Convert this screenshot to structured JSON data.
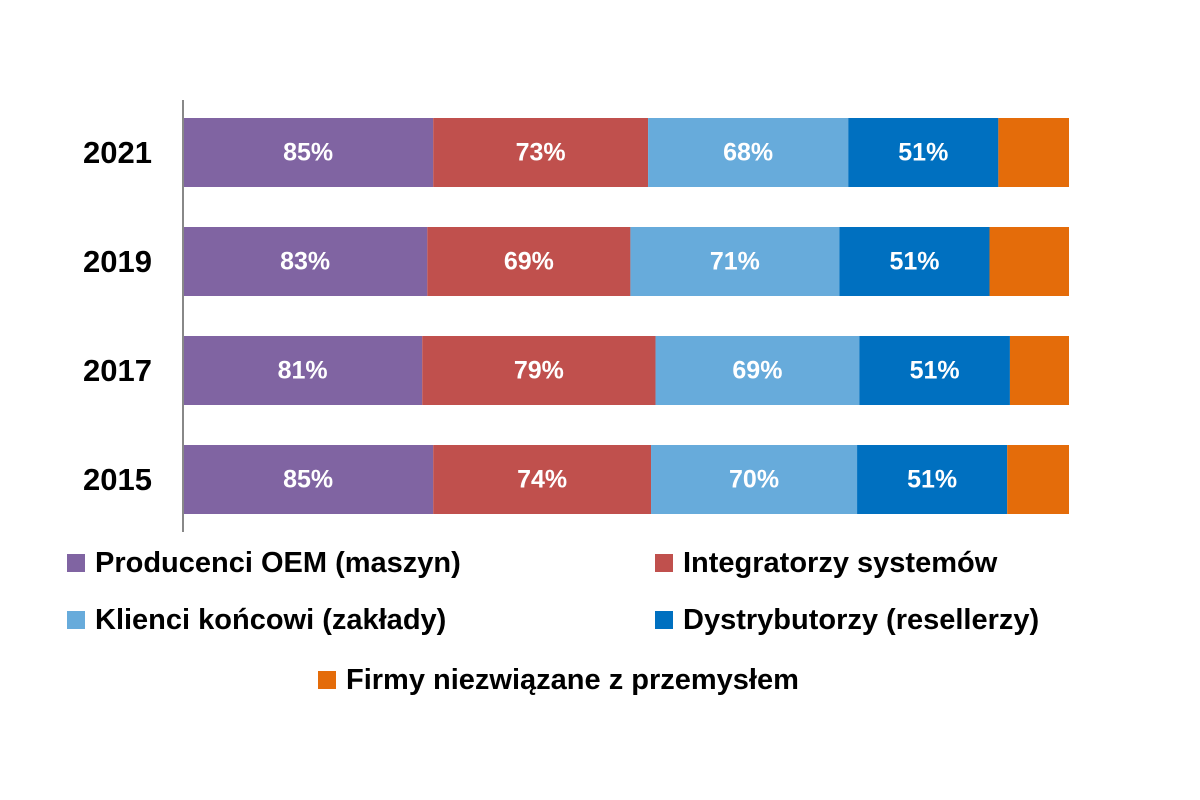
{
  "chart_data": {
    "type": "bar",
    "orientation": "horizontal",
    "stacked": true,
    "categories": [
      "2021",
      "2019",
      "2017",
      "2015"
    ],
    "series": [
      {
        "name": "Producenci OEM (maszyn)",
        "color": "#8064A2",
        "values": [
          85,
          83,
          81,
          85
        ]
      },
      {
        "name": "Integratorzy systemów",
        "color": "#C0504D",
        "values": [
          73,
          69,
          79,
          74
        ]
      },
      {
        "name": "Klienci końcowi (zakłady)",
        "color": "#67ABDB",
        "values": [
          68,
          71,
          69,
          70
        ]
      },
      {
        "name": "Dystrybutorzy (resellerzy)",
        "color": "#0070C0",
        "values": [
          51,
          51,
          51,
          51
        ]
      },
      {
        "name": "Firmy niezwiązane z przemysłem",
        "color": "#E46C0A",
        "values": [
          24,
          27,
          20,
          21
        ]
      }
    ],
    "value_labels": [
      [
        "85%",
        "73%",
        "68%",
        "51%",
        ""
      ],
      [
        "83%",
        "69%",
        "71%",
        "51%",
        ""
      ],
      [
        "81%",
        "79%",
        "69%",
        "51%",
        ""
      ],
      [
        "85%",
        "74%",
        "70%",
        "51%",
        ""
      ]
    ],
    "legend_position": "bottom",
    "grid": false,
    "title": "",
    "xlabel": "",
    "ylabel": ""
  }
}
